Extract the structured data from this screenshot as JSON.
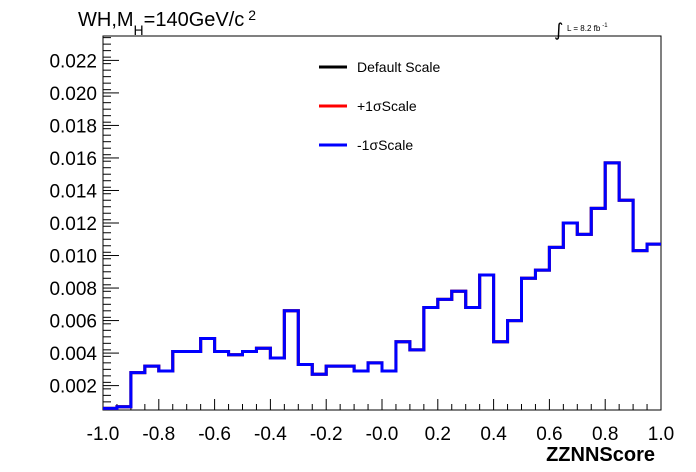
{
  "chart_data": {
    "type": "line",
    "title_main": "WH,M",
    "title_sub": "H",
    "title_rest": "=140GeV/c",
    "title_sup": "2",
    "lumi_main": "L = 8.2 fb",
    "lumi_sup": "-1",
    "xlabel": "ZZNNScore",
    "ylabel": "",
    "xlim": [
      -1.0,
      1.0
    ],
    "ylim": [
      0.0005,
      0.0235
    ],
    "xtick_labels": [
      "-1.0",
      "-0.8",
      "-0.6",
      "-0.4",
      "-0.2",
      "-0.0",
      "0.2",
      "0.4",
      "0.6",
      "0.8",
      "1.0"
    ],
    "xticks": [
      -1.0,
      -0.8,
      -0.6,
      -0.4,
      -0.2,
      0.0,
      0.2,
      0.4,
      0.6,
      0.8,
      1.0
    ],
    "ytick_labels": [
      "0.002",
      "0.004",
      "0.006",
      "0.008",
      "0.010",
      "0.012",
      "0.014",
      "0.016",
      "0.018",
      "0.020",
      "0.022"
    ],
    "yticks": [
      0.002,
      0.004,
      0.006,
      0.008,
      0.01,
      0.012,
      0.014,
      0.016,
      0.018,
      0.02,
      0.022
    ],
    "grid": false,
    "legend_position": "top-center",
    "bin_edges": [
      -1.0,
      -0.95,
      -0.9,
      -0.85,
      -0.8,
      -0.75,
      -0.7,
      -0.65,
      -0.6,
      -0.55,
      -0.5,
      -0.45,
      -0.4,
      -0.35,
      -0.3,
      -0.25,
      -0.2,
      -0.15,
      -0.1,
      -0.05,
      0.0,
      0.05,
      0.1,
      0.15,
      0.2,
      0.25,
      0.3,
      0.35,
      0.4,
      0.45,
      0.5,
      0.55,
      0.6,
      0.65,
      0.7,
      0.75,
      0.8,
      0.85,
      0.9,
      0.95,
      1.0
    ],
    "series": [
      {
        "name": "Default Scale",
        "color": "#000000",
        "values": [
          0.0006,
          0.0007,
          0.0028,
          0.0032,
          0.0029,
          0.0041,
          0.0041,
          0.0049,
          0.0041,
          0.0039,
          0.0041,
          0.0043,
          0.0037,
          0.0066,
          0.0033,
          0.0027,
          0.0032,
          0.0032,
          0.0029,
          0.0034,
          0.0029,
          0.0047,
          0.0042,
          0.0068,
          0.0073,
          0.0078,
          0.0068,
          0.0088,
          0.0047,
          0.006,
          0.0086,
          0.0091,
          0.0105,
          0.012,
          0.0113,
          0.0129,
          0.0157,
          0.0134,
          0.0103,
          0.0107
        ]
      },
      {
        "name": "+1σScale",
        "color": "#ff0000",
        "values": [
          0.0006,
          0.0007,
          0.0028,
          0.0032,
          0.0029,
          0.0041,
          0.0041,
          0.0049,
          0.0041,
          0.0039,
          0.0041,
          0.0043,
          0.0037,
          0.0066,
          0.0033,
          0.0027,
          0.0032,
          0.0032,
          0.0029,
          0.0034,
          0.0029,
          0.0047,
          0.0042,
          0.0068,
          0.0073,
          0.0078,
          0.0068,
          0.0088,
          0.0047,
          0.006,
          0.0086,
          0.0091,
          0.0105,
          0.012,
          0.0113,
          0.0129,
          0.0157,
          0.0134,
          0.0103,
          0.0107
        ]
      },
      {
        "name": "-1σScale",
        "color": "#0000ff",
        "values": [
          0.0006,
          0.0007,
          0.0028,
          0.0032,
          0.0029,
          0.0041,
          0.0041,
          0.0049,
          0.0041,
          0.0039,
          0.0041,
          0.0043,
          0.0037,
          0.0066,
          0.0033,
          0.0027,
          0.0032,
          0.0032,
          0.0029,
          0.0034,
          0.0029,
          0.0047,
          0.0042,
          0.0068,
          0.0073,
          0.0078,
          0.0068,
          0.0088,
          0.0047,
          0.006,
          0.0086,
          0.0091,
          0.0105,
          0.012,
          0.0113,
          0.0129,
          0.0157,
          0.0134,
          0.0103,
          0.0107
        ]
      }
    ]
  }
}
